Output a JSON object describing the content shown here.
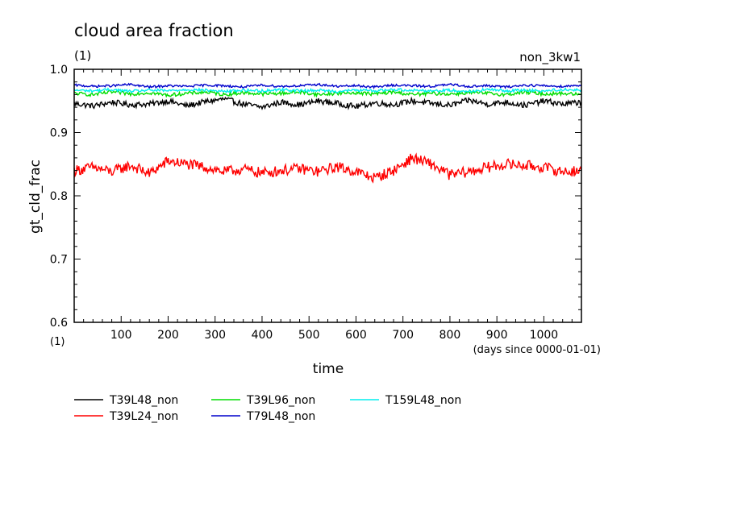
{
  "chart_data": {
    "type": "line",
    "title": "cloud area fraction",
    "title_unit": "(1)",
    "run_label": "non_3kw1",
    "xlabel": "time",
    "x_unit_note": "(days since 0000-01-01)",
    "ylabel": "gt_cld_frac",
    "y_unit_note": "(1)",
    "xlim": [
      0,
      1080
    ],
    "ylim": [
      0.6,
      1.0
    ],
    "x_ticks": [
      100,
      200,
      300,
      400,
      500,
      600,
      700,
      800,
      900,
      1000
    ],
    "x_tick_labels": [
      "100",
      "200",
      "300",
      "400",
      "500",
      "600",
      "700",
      "800",
      "900",
      "1000"
    ],
    "y_ticks": [
      0.6,
      0.7,
      0.8,
      0.9,
      1.0
    ],
    "y_tick_labels": [
      "0.6",
      "0.7",
      "0.8",
      "0.9",
      "1.0"
    ],
    "grid": false,
    "legend_position": "bottom",
    "x": [
      0,
      40,
      80,
      120,
      160,
      200,
      240,
      280,
      320,
      360,
      400,
      440,
      480,
      520,
      560,
      600,
      640,
      680,
      720,
      760,
      800,
      840,
      880,
      920,
      960,
      1000,
      1040,
      1080
    ],
    "series": [
      {
        "name": "T39L48_non",
        "color": "#000000",
        "values": [
          0.946,
          0.942,
          0.948,
          0.944,
          0.945,
          0.95,
          0.942,
          0.949,
          0.953,
          0.945,
          0.94,
          0.948,
          0.944,
          0.95,
          0.946,
          0.941,
          0.947,
          0.944,
          0.95,
          0.946,
          0.943,
          0.951,
          0.945,
          0.948,
          0.943,
          0.95,
          0.945,
          0.948
        ]
      },
      {
        "name": "T39L24_non",
        "color": "#ff0000",
        "values": [
          0.84,
          0.845,
          0.838,
          0.848,
          0.835,
          0.855,
          0.85,
          0.845,
          0.838,
          0.842,
          0.836,
          0.84,
          0.843,
          0.838,
          0.846,
          0.838,
          0.828,
          0.84,
          0.86,
          0.85,
          0.833,
          0.838,
          0.845,
          0.85,
          0.848,
          0.845,
          0.838,
          0.84
        ]
      },
      {
        "name": "T39L96_non",
        "color": "#00dd00",
        "values": [
          0.962,
          0.96,
          0.964,
          0.961,
          0.963,
          0.959,
          0.962,
          0.964,
          0.96,
          0.963,
          0.961,
          0.962,
          0.964,
          0.96,
          0.962,
          0.963,
          0.961,
          0.964,
          0.96,
          0.962,
          0.961,
          0.963,
          0.962,
          0.96,
          0.964,
          0.961,
          0.962,
          0.96
        ]
      },
      {
        "name": "T79L48_non",
        "color": "#0000cc",
        "values": [
          0.975,
          0.973,
          0.974,
          0.976,
          0.972,
          0.974,
          0.973,
          0.975,
          0.974,
          0.972,
          0.975,
          0.973,
          0.974,
          0.976,
          0.973,
          0.974,
          0.972,
          0.975,
          0.974,
          0.973,
          0.976,
          0.973,
          0.974,
          0.972,
          0.975,
          0.974,
          0.973,
          0.975
        ]
      },
      {
        "name": "T159L48_non",
        "color": "#00eeee",
        "values": [
          0.967,
          0.966,
          0.968,
          0.965,
          0.967,
          0.966,
          0.968,
          0.967,
          0.965,
          0.967,
          0.966,
          0.968,
          0.966,
          0.967,
          0.965,
          0.967,
          0.966,
          0.968,
          0.967,
          0.966,
          0.967,
          0.965,
          0.968,
          0.966,
          0.967,
          0.966,
          0.968,
          0.967
        ]
      }
    ]
  }
}
